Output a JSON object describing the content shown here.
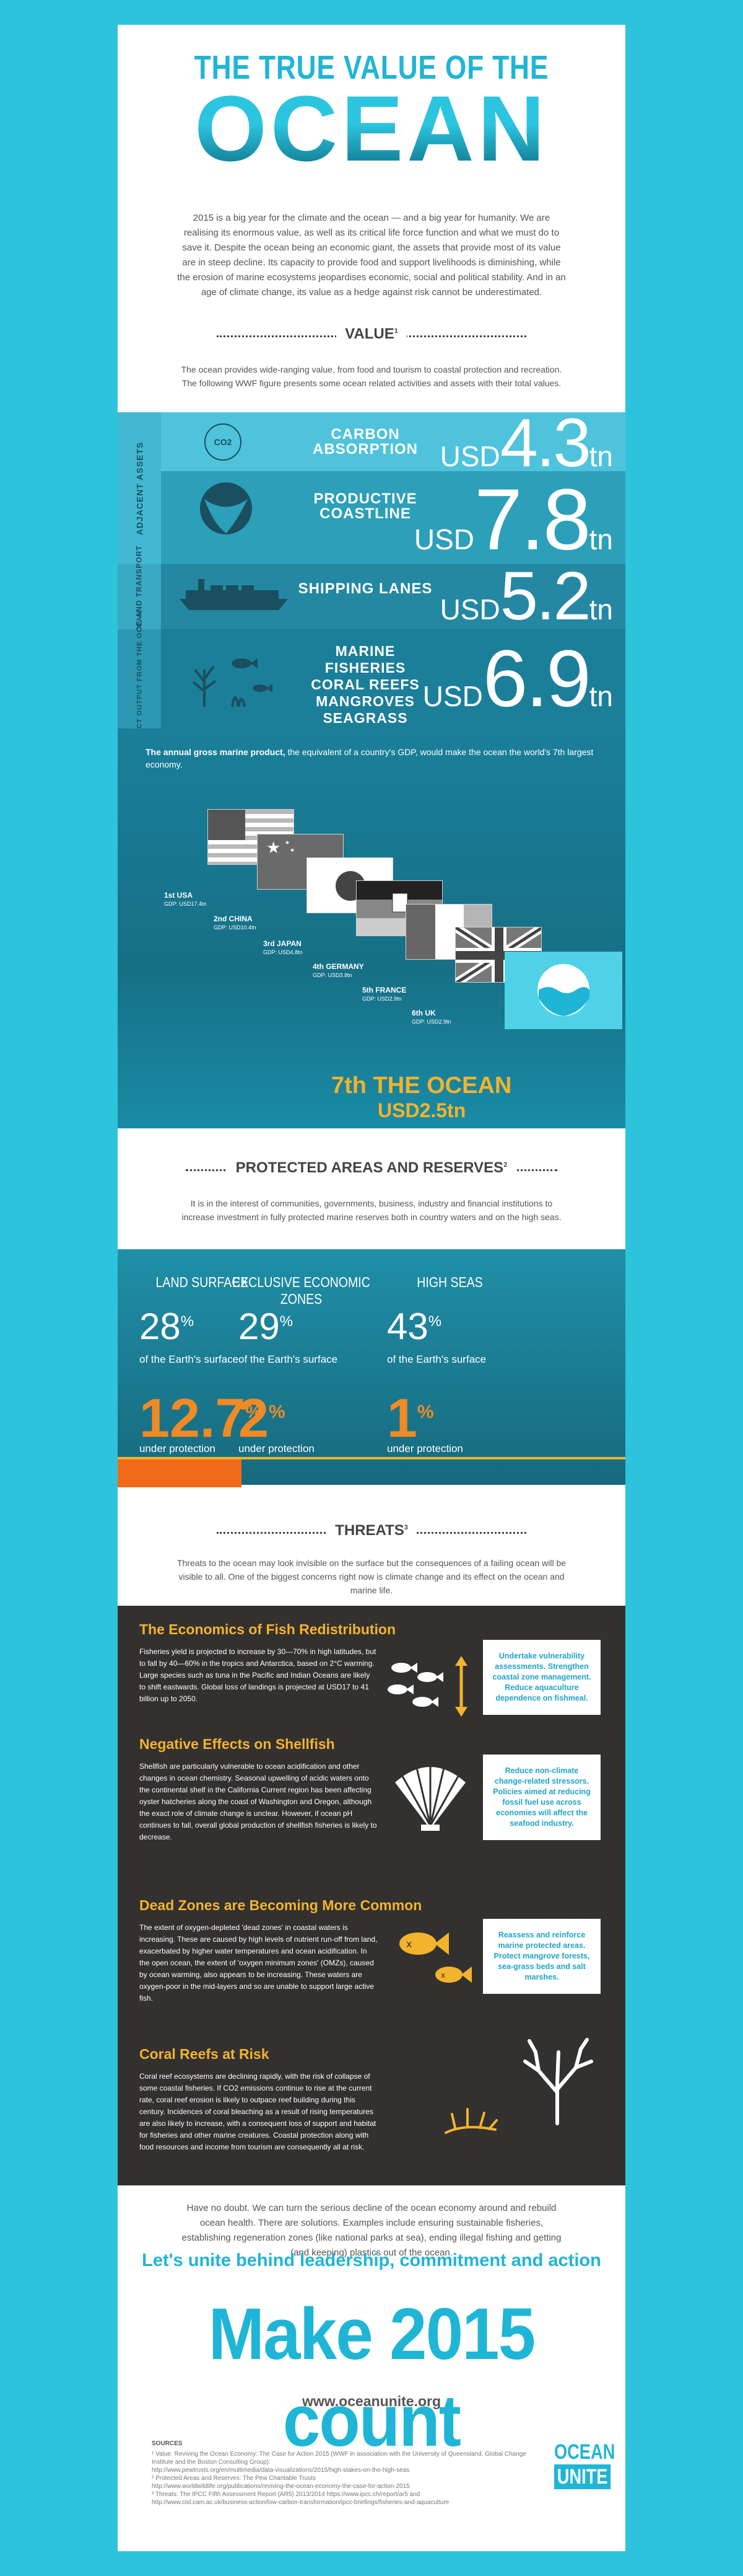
{
  "header": {
    "title_top": "THE TRUE VALUE OF THE",
    "title_main": "OCEAN",
    "intro": "2015 is a big year for the climate and the ocean — and a big year for humanity. We are realising its enormous value, as well as its critical life force function and what we must do to save it. Despite the ocean being an economic giant, the assets that provide most of its value are in steep decline. Its capacity to provide food and support livelihoods is diminishing, while the erosion of marine ecosystems jeopardises economic, social and political stability. And in an age of climate change, its value as a hedge against risk cannot be underestimated."
  },
  "value": {
    "title": "VALUE",
    "sup": "1",
    "text": "The ocean provides wide-ranging value, from food and tourism to coastal protection and recreation. The following WWF figure presents some ocean related activities and assets with their total values.",
    "group_labels": [
      "ADJACENT ASSETS",
      "TRADE AND TRANSPORT",
      "DIRECT OUTPUT FROM THE OCEAN"
    ],
    "co2_badge": "CO2",
    "rows": [
      {
        "label": "CARBON ABSORPTION",
        "unit": "USD",
        "value": "4.3",
        "suffix": "tn"
      },
      {
        "label": "PRODUCTIVE COASTLINE",
        "unit": "USD",
        "value": "7.8",
        "suffix": "tn"
      },
      {
        "label": "SHIPPING LANES",
        "unit": "USD",
        "value": "5.2",
        "suffix": "tn"
      },
      {
        "label": "MARINE FISHERIES CORAL REEFS MANGROVES SEAGRASS",
        "unit": "USD",
        "value": "6.9",
        "suffix": "tn"
      }
    ],
    "gmp_bold": "The annual gross marine product,",
    "gmp_rest": " the equivalent of a country's GDP, would make the ocean the world's 7th largest economy.",
    "countries": [
      {
        "rank": "1st USA",
        "gdp": "GDP: USD17.4tn"
      },
      {
        "rank": "2nd CHINA",
        "gdp": "GDP: USD10.4tn"
      },
      {
        "rank": "3rd JAPAN",
        "gdp": "GDP: USD4.8tn"
      },
      {
        "rank": "4th GERMANY",
        "gdp": "GDP: USD3.8tn"
      },
      {
        "rank": "5th FRANCE",
        "gdp": "GDP: USD2.9tn"
      },
      {
        "rank": "6th UK",
        "gdp": "GDP: USD2.9tn"
      }
    ],
    "ocean_rank": "7th THE OCEAN",
    "ocean_gdp": "USD2.5tn"
  },
  "protected": {
    "title": "PROTECTED AREAS AND RESERVES",
    "sup": "2",
    "text": "It is in the interest of communities, governments, business, industry and financial institutions to increase investment in fully protected marine reserves both in country waters and on the high seas.",
    "cols": [
      {
        "head": "LAND SURFACE",
        "pct": "28",
        "of": "of the Earth's surface",
        "prot": "12.7",
        "under": "under protection",
        "fill": 0.127
      },
      {
        "head": "EXCLUSIVE ECONOMIC ZONES",
        "pct": "29",
        "of": "of the Earth's surface",
        "prot": "2",
        "under": "under protection",
        "fill": 0.02
      },
      {
        "head": "HIGH SEAS",
        "pct": "43",
        "of": "of the Earth's surface",
        "prot": "1",
        "under": "under protection",
        "fill": 0.01
      }
    ],
    "pct_symbol": "%"
  },
  "threats": {
    "title": "THREATS",
    "sup": "3",
    "text": "Threats to the ocean may look invisible on the surface but the consequences of a failing ocean will be visible to all. One of the biggest concerns right now is climate change and its effect on the ocean and marine life.",
    "items": [
      {
        "heading": "The Economics of Fish Redistribution",
        "body": "Fisheries yield is projected to increase by 30—70% in high latitudes, but to fall by 40—60% in the tropics and Antarctica, based on 2°C warming. Large species such as tuna in the Pacific and Indian Oceans are likely to shift eastwards. Global loss of landings is projected at USD17 to 41 billion up to 2050.",
        "solution": "Undertake vulnerability assessments. Strengthen coastal zone management. Reduce aquaculture dependence on fishmeal."
      },
      {
        "heading": "Negative Effects on Shellfish",
        "body": "Shellfish are particularly vulnerable to ocean acidification and other changes in ocean chemistry. Seasonal upwelling of acidic waters onto the continental shelf in the California Current region has been affecting oyster hatcheries along the coast of Washington and Oregon, although the exact role of climate change is unclear. However, if ocean pH continues to fall, overall global production of shellfish fisheries is likely to decrease.",
        "solution": "Reduce non-climate change-related stressors. Policies aimed at reducing fossil fuel use across economies will affect the seafood industry."
      },
      {
        "heading": "Dead Zones are Becoming More Common",
        "body": "The extent of oxygen-depleted 'dead zones' in coastal waters is increasing. These are caused by high levels of nutrient run-off from land, exacerbated by higher water temperatures and ocean acidification. In the open ocean, the extent of 'oxygen minimum zones' (OMZs), caused by ocean warming, also appears to be increasing. These waters are oxygen-poor in the mid-layers and so are unable to support large active fish.",
        "solution": "Reassess and reinforce marine protected areas. Protect mangrove forests, sea-grass beds and salt marshes."
      },
      {
        "heading": "Coral Reefs at Risk",
        "body": "Coral reef ecosystems are declining rapidly, with the risk of collapse of some coastal fisheries. If CO2 emissions continue to rise at the current rate, coral reef erosion is likely to outpace reef building during this century. Incidences of coral bleaching as a result of rising temperatures are also likely to increase, with a consequent loss of support and habitat for fisheries and other marine creatures. Coastal protection along with food resources and income from tourism are consequently all at risk.",
        "solution": ""
      }
    ]
  },
  "footer": {
    "closing": "Have no doubt. We can turn the serious decline of the ocean economy around and rebuild ocean health. There are solutions. Examples include ensuring sustainable fisheries, establishing regeneration zones (like national parks at sea), ending illegal fishing and getting (and keeping) plastics out of the ocean.",
    "cta": "Let's unite behind leadership, commitment and action",
    "make": "Make 2015 count",
    "url": "www.oceanunite.org",
    "sources_title": "SOURCES",
    "sources": [
      "¹ Value: Reviving the Ocean Economy: The Case for Action 2015 (WWF in association with the University of Queensland, Global Change Institute and the Boston Consulting Group).",
      "http://www.pewtrusts.org/en/multimedia/data-visualizations/2015/high-stakes-on-the-high-seas",
      "² Protected Areas and Reserves: The Pew Charitable Trusts",
      "http://www.worldwildlife.org/publications/reviving-the-ocean-economy-the-case-for-action-2015",
      "³ Threats: The IPCC Fifth Assessment Report (AR5) 2013/2014 https://www.ipcc.ch/report/ar5 and",
      "http://www.cisl.cam.ac.uk/business-action/low-carbon-transformation/ipcc-briefings/fisheries-and-aquaculture"
    ],
    "logo_top": "OCEAN",
    "logo_bottom": "UNITE"
  },
  "colors": {
    "accent": "#1fb5d6",
    "background": "#2ec3dc",
    "orange": "#f08a24",
    "gold": "#f3b32c",
    "dark": "#333130",
    "teal_band": "#1f8fa8"
  }
}
